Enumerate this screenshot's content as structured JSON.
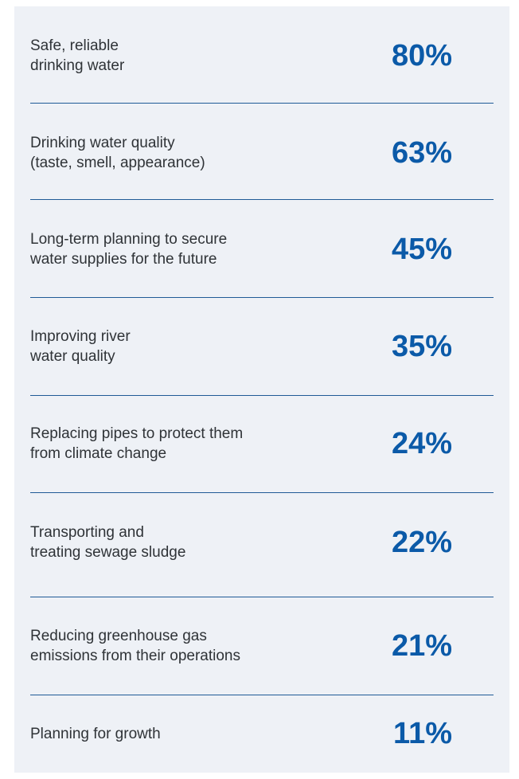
{
  "items": [
    {
      "label": [
        "Safe, reliable",
        "drinking water"
      ],
      "value": "80%"
    },
    {
      "label": [
        "Drinking water quality",
        "(taste, smell, appearance)"
      ],
      "value": "63%"
    },
    {
      "label": [
        "Long-term planning to secure",
        "water supplies for the future"
      ],
      "value": "45%"
    },
    {
      "label": [
        "Improving river",
        "water quality"
      ],
      "value": "35%"
    },
    {
      "label": [
        "Replacing pipes to protect them",
        "from climate change"
      ],
      "value": "24%"
    },
    {
      "label": [
        "Transporting and",
        "treating sewage sludge"
      ],
      "value": "22%"
    },
    {
      "label": [
        "Reducing greenhouse gas",
        "emissions from their operations"
      ],
      "value": "21%"
    },
    {
      "label": [
        "Planning for growth"
      ],
      "value": "11%"
    }
  ]
}
